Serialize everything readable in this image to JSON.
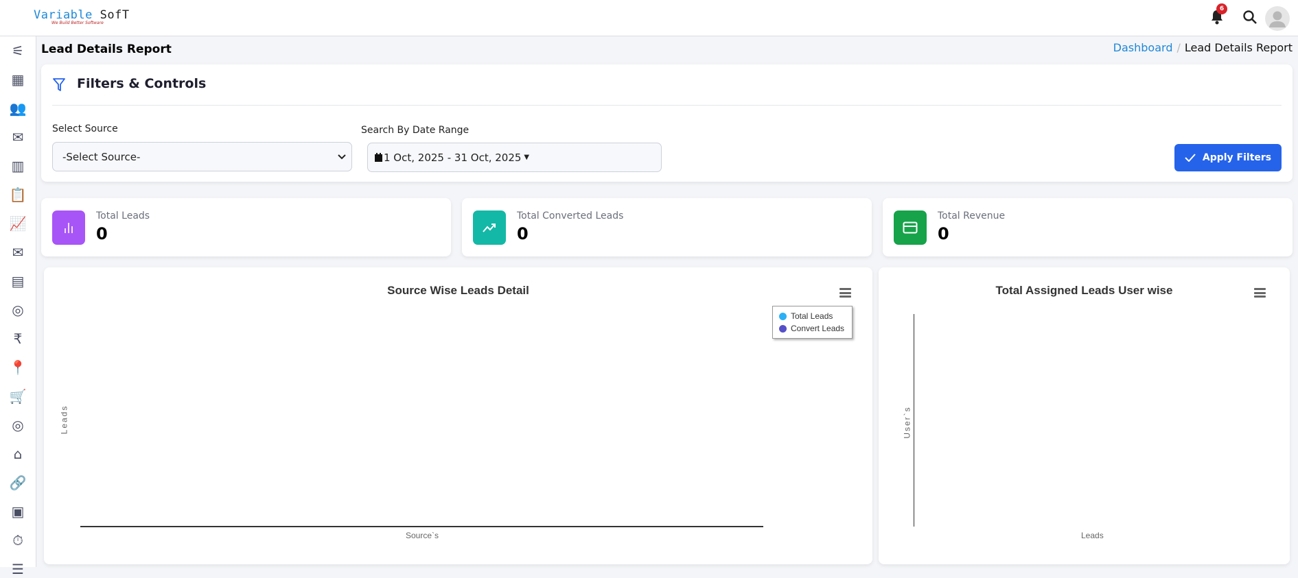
{
  "header": {
    "logo_main": "Variable",
    "logo_accent": "SofT",
    "logo_tagline": "We Build Better Software",
    "notification_count": "6"
  },
  "sidebar": {
    "icons": [
      "sliders-icon",
      "grid-icon",
      "users-gear-icon",
      "envelope-open-icon",
      "bar-chart-icon",
      "clipboard-list-icon",
      "line-chart-icon",
      "envelope-icon",
      "building-icon",
      "whatsapp-icon",
      "rupee-icon",
      "pin-icon",
      "cart-icon",
      "whatsapp-icon",
      "home-icon",
      "link-icon",
      "id-card-icon",
      "stopwatch-icon",
      "list-icon"
    ]
  },
  "page": {
    "title": "Lead Details Report",
    "breadcrumb": [
      "Dashboard",
      "Lead Details Report"
    ]
  },
  "filters": {
    "title": "Filters & Controls",
    "source_label": "Select Source",
    "source_value": "-Select Source-",
    "date_label": "Search By Date Range",
    "date_value": "1 Oct, 2025 - 31 Oct, 2025",
    "apply_label": "Apply Filters",
    "accent": "#2563eb"
  },
  "stats": [
    {
      "label": "Total Leads",
      "value": "0",
      "color": "#a855f7",
      "icon": "bar-chart-icon"
    },
    {
      "label": "Total Converted Leads",
      "value": "0",
      "color": "#14b8a6",
      "icon": "trending-up-icon"
    },
    {
      "label": "Total Revenue",
      "value": "0",
      "color": "#16a34a",
      "icon": "credit-card-icon"
    }
  ],
  "chart_data": [
    {
      "type": "bar",
      "title": "Source Wise Leads Detail",
      "xlabel": "Source`s",
      "ylabel": "Leads",
      "categories": [],
      "series": [
        {
          "name": "Total Leads",
          "values": [],
          "color": "#2bb0f5"
        },
        {
          "name": "Convert Leads",
          "values": [],
          "color": "#5550c8"
        }
      ],
      "legend": "top-right"
    },
    {
      "type": "bar",
      "orientation": "horizontal",
      "title": "Total Assigned Leads User wise",
      "xlabel": "Leads",
      "ylabel": "User`s",
      "categories": [],
      "values": []
    }
  ]
}
